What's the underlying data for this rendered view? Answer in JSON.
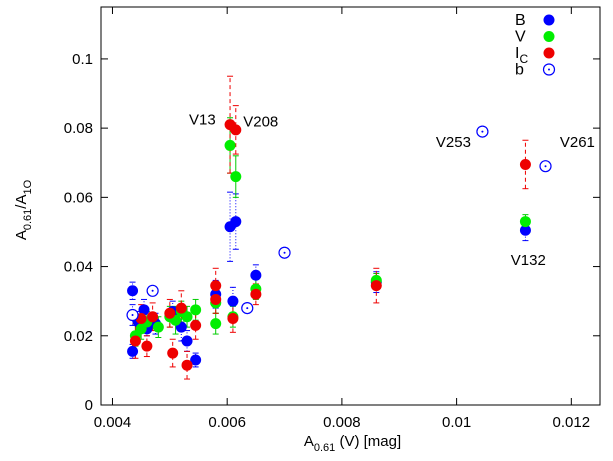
{
  "chart_data": {
    "type": "scatter",
    "title": "",
    "xlabel": {
      "main": "A",
      "sub": "0.61",
      "rest": " (V)   [mag]"
    },
    "ylabel": {
      "main": "A",
      "sub1": "0.61",
      "mid": "/A",
      "sub2": "1O"
    },
    "xlim": [
      0.0038,
      0.0125
    ],
    "ylim": [
      0,
      0.115
    ],
    "xticks": [
      0.004,
      0.006,
      0.008,
      0.01,
      0.012
    ],
    "xtick_labels": [
      "0.004",
      "0.006",
      "0.008",
      "0.01",
      "0.012"
    ],
    "yticks": [
      0,
      0.02,
      0.04,
      0.06,
      0.08,
      0.1
    ],
    "ytick_labels": [
      "0",
      "0.02",
      "0.04",
      "0.06",
      "0.08",
      "0.1"
    ],
    "grid": false,
    "legend_position": "top-right",
    "series": [
      {
        "name": "B",
        "name_sub": "",
        "color": "#0000ff",
        "marker": "filled-circle",
        "points": [
          [
            0.00435,
            0.033,
            0.0025
          ],
          [
            0.00435,
            0.0155,
            0.002
          ],
          [
            0.00445,
            0.024,
            0.003
          ],
          [
            0.00455,
            0.0275,
            0.003
          ],
          [
            0.0046,
            0.022,
            0.002
          ],
          [
            0.00475,
            0.0235,
            0.003
          ],
          [
            0.00505,
            0.027,
            0.003
          ],
          [
            0.0052,
            0.0225,
            0.004
          ],
          [
            0.0053,
            0.0185,
            0.003
          ],
          [
            0.00545,
            0.013,
            0.002
          ],
          [
            0.0058,
            0.032,
            0.004
          ],
          [
            0.00605,
            0.0515,
            0.01
          ],
          [
            0.00615,
            0.053,
            0.008
          ],
          [
            0.0061,
            0.03,
            0.004
          ],
          [
            0.0065,
            0.0375,
            0.003
          ],
          [
            0.0086,
            0.0355,
            0.003
          ],
          [
            0.0112,
            0.0505,
            0.003
          ]
        ]
      },
      {
        "name": "V",
        "name_sub": "",
        "color": "#00ee00",
        "marker": "filled-circle",
        "points": [
          [
            0.0044,
            0.02,
            0.003
          ],
          [
            0.0045,
            0.022,
            0.003
          ],
          [
            0.0046,
            0.024,
            0.003
          ],
          [
            0.0048,
            0.0225,
            0.003
          ],
          [
            0.005,
            0.0255,
            0.003
          ],
          [
            0.0051,
            0.0245,
            0.004
          ],
          [
            0.0052,
            0.027,
            0.003
          ],
          [
            0.0053,
            0.0255,
            0.003
          ],
          [
            0.00545,
            0.0275,
            0.003
          ],
          [
            0.0058,
            0.0235,
            0.003
          ],
          [
            0.0058,
            0.0295,
            0.003
          ],
          [
            0.00605,
            0.075,
            0.008
          ],
          [
            0.00615,
            0.066,
            0.006
          ],
          [
            0.0061,
            0.0255,
            0.003
          ],
          [
            0.0065,
            0.0335,
            0.003
          ],
          [
            0.0086,
            0.036,
            0.002
          ],
          [
            0.0112,
            0.053,
            0.002
          ]
        ]
      },
      {
        "name": "I",
        "name_sub": "C",
        "color": "#ee0000",
        "marker": "filled-circle",
        "points": [
          [
            0.0044,
            0.0185,
            0.005
          ],
          [
            0.0045,
            0.025,
            0.004
          ],
          [
            0.0046,
            0.017,
            0.003
          ],
          [
            0.0047,
            0.0255,
            0.004
          ],
          [
            0.005,
            0.0265,
            0.004
          ],
          [
            0.00505,
            0.015,
            0.004
          ],
          [
            0.0052,
            0.028,
            0.005
          ],
          [
            0.0053,
            0.0115,
            0.004
          ],
          [
            0.00545,
            0.023,
            0.004
          ],
          [
            0.0058,
            0.0305,
            0.004
          ],
          [
            0.0058,
            0.0345,
            0.005
          ],
          [
            0.00605,
            0.081,
            0.014
          ],
          [
            0.00615,
            0.0795,
            0.007
          ],
          [
            0.0061,
            0.025,
            0.004
          ],
          [
            0.0065,
            0.032,
            0.003
          ],
          [
            0.0086,
            0.0345,
            0.005
          ],
          [
            0.0112,
            0.0695,
            0.007
          ]
        ]
      },
      {
        "name": "b",
        "name_sub": "",
        "color": "#0000ff",
        "marker": "open-circle-dot",
        "points": [
          [
            0.00435,
            0.026,
            0.003
          ],
          [
            0.0047,
            0.033,
            0
          ],
          [
            0.00635,
            0.028,
            0
          ],
          [
            0.007,
            0.044,
            0
          ],
          [
            0.01045,
            0.079,
            0
          ],
          [
            0.01155,
            0.069,
            0
          ]
        ]
      }
    ],
    "annotations": [
      {
        "text": "V13",
        "x": 0.0058,
        "y": 0.081,
        "anchor": "end"
      },
      {
        "text": "V208",
        "x": 0.00628,
        "y": 0.0805,
        "anchor": "start"
      },
      {
        "text": "V253",
        "x": 0.01025,
        "y": 0.0745,
        "anchor": "end"
      },
      {
        "text": "V261",
        "x": 0.0118,
        "y": 0.0745,
        "anchor": "start"
      },
      {
        "text": "V132",
        "x": 0.01125,
        "y": 0.0405,
        "anchor": "middle"
      }
    ]
  }
}
